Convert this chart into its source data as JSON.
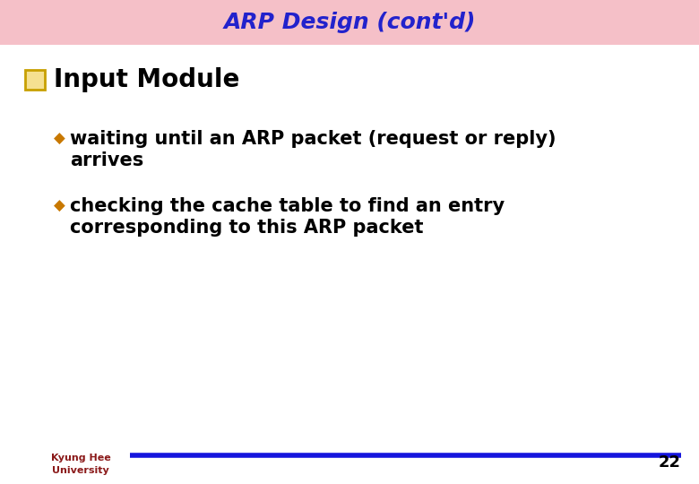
{
  "title": "ARP Design (cont'd)",
  "title_color": "#2222CC",
  "title_bg_color": "#F5C0C8",
  "title_fontsize": 18,
  "section_heading": "Input Module",
  "section_heading_color": "#000000",
  "section_heading_fontsize": 20,
  "section_box_color": "#C8A000",
  "section_box_face": "#F5E090",
  "bullet_color": "#C87800",
  "bullet_text_color": "#000000",
  "bullet_fontsize": 15,
  "bullets": [
    "waiting until an ARP packet (request or reply)\n  arrives",
    "checking the cache table to find an entry\n  corresponding to this ARP packet"
  ],
  "footer_line_color": "#1515DD",
  "page_number": "22",
  "page_number_color": "#000000",
  "page_number_fontsize": 13,
  "bg_color": "#FFFFFF",
  "university_text": "Kyung Hee\nUniversity",
  "university_text_color": "#8B1A1A"
}
